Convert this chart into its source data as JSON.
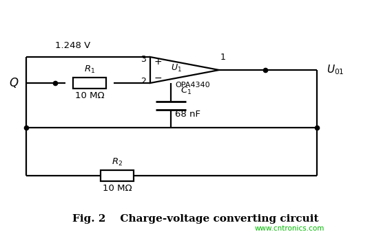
{
  "title": "Fig. 2    Charge-voltage converting circuit",
  "watermark": "www.cntronics.com",
  "bg_color": "#ffffff",
  "line_color": "#000000",
  "watermark_color": "#00bb00",
  "Q_label": "Q",
  "R1_label": "R_1",
  "R1_value": "10 MΩ",
  "R2_label": "R_2",
  "R2_value": "10 MΩ",
  "C1_label": "C_1",
  "C1_value": "68 nF",
  "U1_label": "U_1",
  "opamp_label": "OPA4340",
  "Vref": "1.248 V",
  "Uout_label": "U_{01}",
  "node1_label": "1",
  "node2_label": "2",
  "node3_label": "3"
}
